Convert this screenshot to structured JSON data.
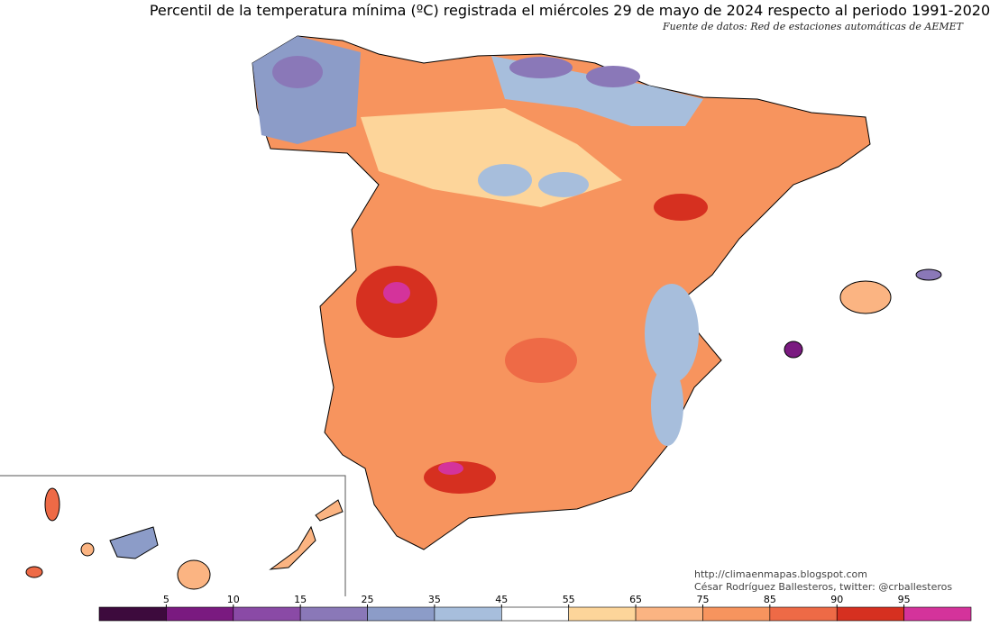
{
  "title": "Percentil de la temperatura mínima (ºC) registrada el miércoles 29 de mayo de 2024 respecto al periodo 1991-2020",
  "source": "Fuente de datos: Red de estaciones automáticas de AEMET",
  "credits": {
    "url": "http://climaenmapas.blogspot.com",
    "author": "César Rodríguez Ballesteros, twitter: @crballesteros"
  },
  "colorbar": {
    "ticks": [
      5,
      10,
      15,
      25,
      35,
      45,
      55,
      65,
      75,
      85,
      90,
      95
    ],
    "colors": [
      "#3d0a3d",
      "#7a1a80",
      "#8a4aa6",
      "#8a78b8",
      "#8c9cc8",
      "#a7bedc",
      "#ffffff",
      "#fdd59a",
      "#fbb482",
      "#f7945e",
      "#ee6a46",
      "#d63020",
      "#d4339b"
    ]
  }
}
